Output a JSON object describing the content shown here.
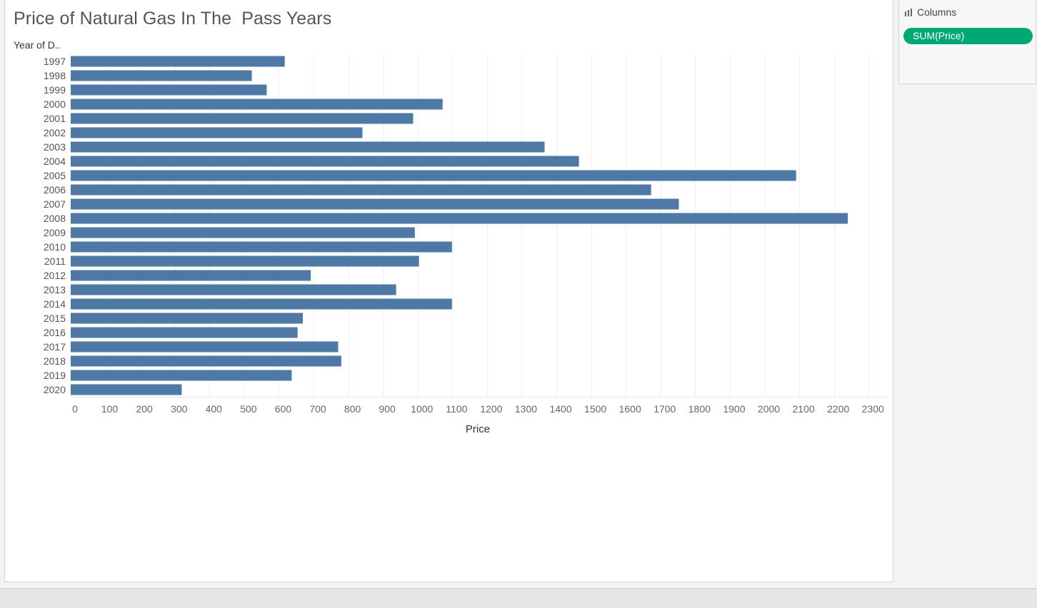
{
  "chart_title": "Price of Natural Gas In The  Pass Years",
  "rows_header": "Year of D..",
  "columns_shelf": {
    "label": "Columns",
    "icon": "columns-shelf-icon",
    "pill_label": "SUM(Price)",
    "pill_color": "#00a876"
  },
  "chart_data": {
    "type": "bar",
    "orientation": "horizontal",
    "categories": [
      "1997",
      "1998",
      "1999",
      "2000",
      "2001",
      "2002",
      "2003",
      "2004",
      "2005",
      "2006",
      "2007",
      "2008",
      "2009",
      "2010",
      "2011",
      "2012",
      "2013",
      "2014",
      "2015",
      "2016",
      "2017",
      "2018",
      "2019",
      "2020"
    ],
    "values": [
      617,
      522,
      565,
      1072,
      987,
      841,
      1366,
      1465,
      2091,
      1673,
      1753,
      2240,
      992,
      1099,
      1004,
      692,
      938,
      1099,
      669,
      654,
      771,
      780,
      637,
      320
    ],
    "xlabel": "Price",
    "ylabel": "Year of D..",
    "xlim": [
      0,
      2350
    ],
    "xticks": [
      0,
      100,
      200,
      300,
      400,
      500,
      600,
      700,
      800,
      900,
      1000,
      1100,
      1200,
      1300,
      1400,
      1500,
      1600,
      1700,
      1800,
      1900,
      2000,
      2100,
      2200,
      2300
    ],
    "bar_color": "#4e79a7",
    "grid": true
  }
}
